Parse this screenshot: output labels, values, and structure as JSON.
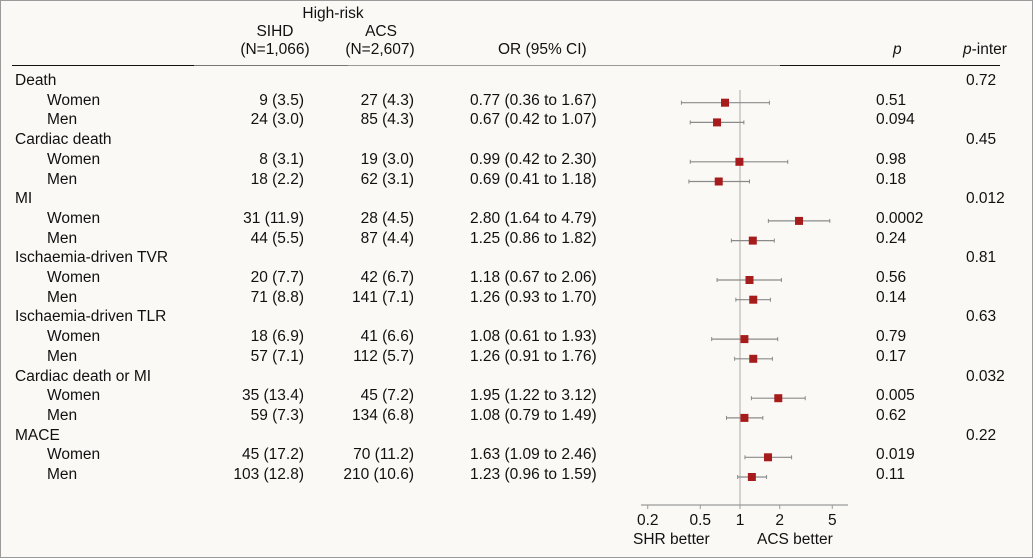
{
  "header": {
    "group_label": "High-risk",
    "col_sihd": "SIHD",
    "col_sihd_n": "(N=1,066)",
    "col_acs": "ACS",
    "col_acs_n": "(N=2,607)",
    "col_or": "OR (95% CI)",
    "col_p": "p",
    "col_pinter_p": "p",
    "col_pinter_rest": "-inter"
  },
  "colors": {
    "marker": "#a61c1c",
    "ci_line": "#8a8a8a",
    "ref_line": "#d4d2cd",
    "axis": "#9a9a9a"
  },
  "chart_data": {
    "type": "forest",
    "xscale": "log",
    "xlim": [
      0.18,
      6.5
    ],
    "xticks": [
      "0.2",
      "0.5",
      "1",
      "2",
      "5"
    ],
    "xtick_values": [
      0.2,
      0.5,
      1,
      2,
      5
    ],
    "reference": 1,
    "left_label": "SHR better",
    "right_label": "ACS better",
    "groups": [
      {
        "name": "Death",
        "p_inter": "0.72",
        "rows": [
          {
            "label": "Women",
            "sihd": "9 (3.5)",
            "acs": "27 (4.3)",
            "or_text": "0.77 (0.36 to 1.67)",
            "or": 0.77,
            "lo": 0.36,
            "hi": 1.67,
            "p": "0.51"
          },
          {
            "label": "Men",
            "sihd": "24 (3.0)",
            "acs": "85 (4.3)",
            "or_text": "0.67 (0.42 to 1.07)",
            "or": 0.67,
            "lo": 0.42,
            "hi": 1.07,
            "p": "0.094"
          }
        ]
      },
      {
        "name": "Cardiac death",
        "p_inter": "0.45",
        "rows": [
          {
            "label": "Women",
            "sihd": "8 (3.1)",
            "acs": "19 (3.0)",
            "or_text": "0.99 (0.42 to 2.30)",
            "or": 0.99,
            "lo": 0.42,
            "hi": 2.3,
            "p": "0.98"
          },
          {
            "label": "Men",
            "sihd": "18 (2.2)",
            "acs": "62 (3.1)",
            "or_text": "0.69 (0.41 to 1.18)",
            "or": 0.69,
            "lo": 0.41,
            "hi": 1.18,
            "p": "0.18"
          }
        ]
      },
      {
        "name": "MI",
        "p_inter": "0.012",
        "rows": [
          {
            "label": "Women",
            "sihd": "31 (11.9)",
            "acs": "28 (4.5)",
            "or_text": "2.80 (1.64 to 4.79)",
            "or": 2.8,
            "lo": 1.64,
            "hi": 4.79,
            "p": "0.0002"
          },
          {
            "label": "Men",
            "sihd": "44 (5.5)",
            "acs": "87 (4.4)",
            "or_text": "1.25 (0.86 to 1.82)",
            "or": 1.25,
            "lo": 0.86,
            "hi": 1.82,
            "p": "0.24"
          }
        ]
      },
      {
        "name": "Ischaemia-driven TVR",
        "p_inter": "0.81",
        "rows": [
          {
            "label": "Women",
            "sihd": "20 (7.7)",
            "acs": "42 (6.7)",
            "or_text": "1.18 (0.67 to 2.06)",
            "or": 1.18,
            "lo": 0.67,
            "hi": 2.06,
            "p": "0.56"
          },
          {
            "label": "Men",
            "sihd": "71 (8.8)",
            "acs": "141 (7.1)",
            "or_text": "1.26 (0.93 to 1.70)",
            "or": 1.26,
            "lo": 0.93,
            "hi": 1.7,
            "p": "0.14"
          }
        ]
      },
      {
        "name": "Ischaemia-driven TLR",
        "p_inter": "0.63",
        "rows": [
          {
            "label": "Women",
            "sihd": "18 (6.9)",
            "acs": "41 (6.6)",
            "or_text": "1.08 (0.61 to 1.93)",
            "or": 1.08,
            "lo": 0.61,
            "hi": 1.93,
            "p": "0.79"
          },
          {
            "label": "Men",
            "sihd": "57 (7.1)",
            "acs": "112 (5.7)",
            "or_text": "1.26 (0.91 to 1.76)",
            "or": 1.26,
            "lo": 0.91,
            "hi": 1.76,
            "p": "0.17"
          }
        ]
      },
      {
        "name": "Cardiac death or MI",
        "p_inter": "0.032",
        "rows": [
          {
            "label": "Women",
            "sihd": "35 (13.4)",
            "acs": "45 (7.2)",
            "or_text": "1.95 (1.22 to 3.12)",
            "or": 1.95,
            "lo": 1.22,
            "hi": 3.12,
            "p": "0.005"
          },
          {
            "label": "Men",
            "sihd": "59 (7.3)",
            "acs": "134 (6.8)",
            "or_text": "1.08 (0.79 to 1.49)",
            "or": 1.08,
            "lo": 0.79,
            "hi": 1.49,
            "p": "0.62"
          }
        ]
      },
      {
        "name": "MACE",
        "p_inter": "0.22",
        "rows": [
          {
            "label": "Women",
            "sihd": "45 (17.2)",
            "acs": "70 (11.2)",
            "or_text": "1.63 (1.09 to 2.46)",
            "or": 1.63,
            "lo": 1.09,
            "hi": 2.46,
            "p": "0.019"
          },
          {
            "label": "Men",
            "sihd": "103 (12.8)",
            "acs": "210 (10.6)",
            "or_text": "1.23 (0.96 to 1.59)",
            "or": 1.23,
            "lo": 0.96,
            "hi": 1.59,
            "p": "0.11"
          }
        ]
      }
    ]
  }
}
